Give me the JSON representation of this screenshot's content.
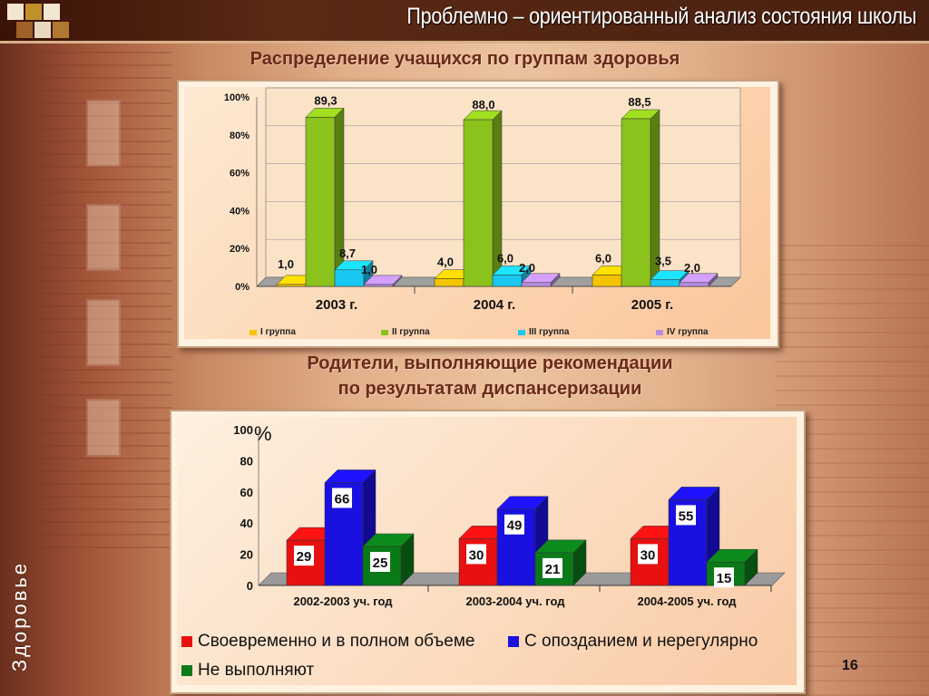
{
  "slide": {
    "title": "Проблемно – ориентированный анализ состояния школы",
    "side_label": "Здоровье",
    "page_number": "16"
  },
  "colors": {
    "g1": "#f5c400",
    "g2": "#8cc21c",
    "g3": "#18c8f0",
    "g4": "#b88ce0",
    "timely": "#e81010",
    "late": "#1a10e0",
    "none": "#0a7a18"
  },
  "chart_data": [
    {
      "type": "bar",
      "title": "Распределение учащихся по группам здоровья",
      "categories": [
        "2003 г.",
        "2004 г.",
        "2005 г."
      ],
      "ylim": [
        0,
        100
      ],
      "yticks": [
        "0%",
        "20%",
        "40%",
        "60%",
        "80%",
        "100%"
      ],
      "yticks_values": [
        0,
        20,
        40,
        60,
        80,
        100
      ],
      "legend_position": "bottom",
      "series": [
        {
          "name": "I группа",
          "values": [
            1.0,
            4.0,
            6.0
          ],
          "labels": [
            "1,0",
            "4,0",
            "6,0"
          ]
        },
        {
          "name": "II группа",
          "values": [
            89.3,
            88.0,
            88.5
          ],
          "labels": [
            "89,3",
            "88,0",
            "88,5"
          ]
        },
        {
          "name": "III группа",
          "values": [
            8.7,
            6.0,
            3.5
          ],
          "labels": [
            "8,7",
            "6,0",
            "3,5"
          ]
        },
        {
          "name": "IV группа",
          "values": [
            1.0,
            2.0,
            2.0
          ],
          "labels": [
            "1,0",
            "2,0",
            "2,0"
          ]
        }
      ]
    },
    {
      "type": "bar",
      "title": "Родители, выполняющие рекомендации по результатам диспансеризации",
      "title_lines": [
        "Родители, выполняющие рекомендации",
        "по результатам диспансеризации"
      ],
      "categories": [
        "2002-2003 уч. год",
        "2003-2004 уч. год",
        "2004-2005 уч. год"
      ],
      "ylim": [
        0,
        100
      ],
      "yticks": [
        "0",
        "20",
        "40",
        "60",
        "80",
        "100"
      ],
      "yticks_values": [
        0,
        20,
        40,
        60,
        80,
        100
      ],
      "unit_label": "%",
      "legend_position": "bottom",
      "series": [
        {
          "name": "Своевременно и в полном объеме",
          "values": [
            29,
            30,
            30
          ]
        },
        {
          "name": "С опозданием и нерегулярно",
          "values": [
            66,
            49,
            55
          ]
        },
        {
          "name": "Не выполняют",
          "values": [
            25,
            21,
            15
          ]
        }
      ]
    }
  ]
}
